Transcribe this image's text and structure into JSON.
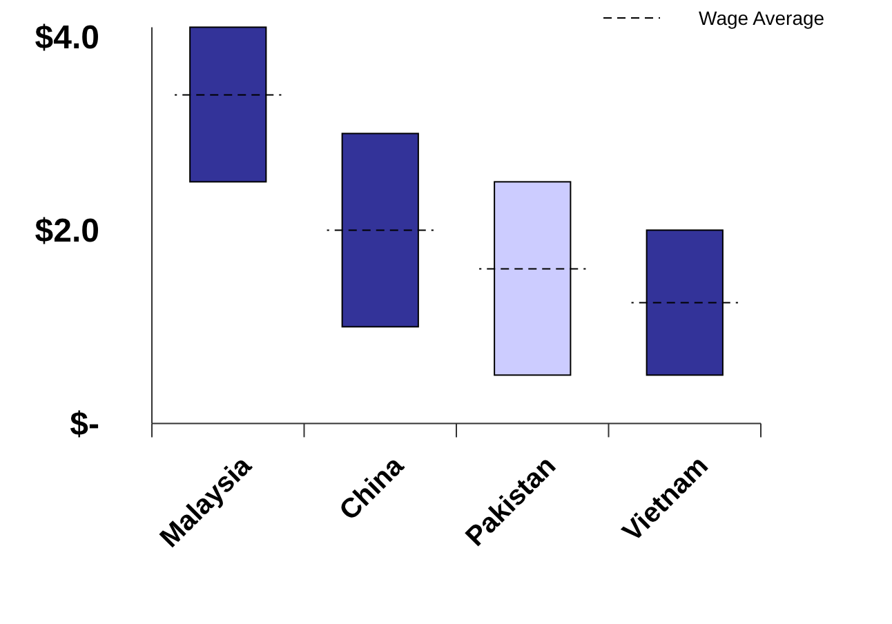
{
  "chart_data": {
    "type": "bar",
    "categories": [
      "Malaysia",
      "China",
      "Pakistan",
      "Vietnam"
    ],
    "series": [
      {
        "base": [
          2.5,
          1.0,
          0.5,
          0.5
        ],
        "values": [
          1.6,
          2.0,
          2.0,
          1.5
        ],
        "colors": [
          "#333399",
          "#333399",
          "#ccccff",
          "#333399"
        ]
      }
    ],
    "ref_lines": [
      {
        "axis": "y",
        "value": 3.4,
        "label": "Wage Average",
        "color": "#000000",
        "line_style": "dashed"
      },
      {
        "axis": "y",
        "value": 2.0,
        "color": "#000000",
        "line_style": "dashed"
      },
      {
        "axis": "y",
        "value": 1.6,
        "color": "#000000",
        "line_style": "dashed"
      },
      {
        "axis": "y",
        "value": 1.25,
        "color": "#000000",
        "line_style": "dashed"
      }
    ],
    "ylim": [
      0,
      4.1
    ],
    "yticks": [
      {
        "value": 0,
        "label": "$-"
      },
      {
        "value": 2,
        "label": "$2.0"
      },
      {
        "value": 4,
        "label": "$4.0"
      }
    ],
    "grid": false,
    "legend": "top right"
  }
}
